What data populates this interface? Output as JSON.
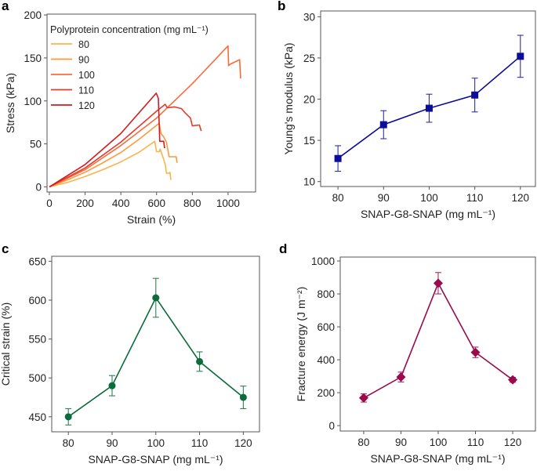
{
  "chart_data": [
    {
      "panel": "a",
      "type": "line",
      "xlabel": "Strain (%)",
      "ylabel": "Stress (kPa)",
      "xlim": [
        -13,
        1154
      ],
      "ylim": [
        -6,
        201
      ],
      "xticks": [
        0,
        200,
        400,
        600,
        800,
        1000
      ],
      "yticks": [
        0,
        50,
        100,
        150,
        200
      ],
      "grid": false,
      "legend": {
        "title": "Polyprotein concentration (mg mL⁻¹)",
        "placement": "top-left"
      },
      "series": [
        {
          "name": "80",
          "color": "#fdb24c",
          "points": [
            [
              0,
              0
            ],
            [
              100,
              5
            ],
            [
              200,
              12
            ],
            [
              300,
              20
            ],
            [
              400,
              29
            ],
            [
              500,
              40
            ],
            [
              590,
              53
            ],
            [
              600,
              41
            ],
            [
              615,
              41
            ],
            [
              620,
              44
            ],
            [
              635,
              35
            ],
            [
              650,
              25
            ],
            [
              655,
              16
            ],
            [
              670,
              16
            ],
            [
              675,
              17
            ],
            [
              680,
              8
            ]
          ]
        },
        {
          "name": "90",
          "color": "#fc993a",
          "points": [
            [
              0,
              0
            ],
            [
              100,
              8
            ],
            [
              200,
              17
            ],
            [
              300,
              28
            ],
            [
              400,
              40
            ],
            [
              500,
              55
            ],
            [
              615,
              74
            ],
            [
              625,
              62
            ],
            [
              640,
              58
            ],
            [
              655,
              52
            ],
            [
              670,
              35
            ],
            [
              710,
              35
            ],
            [
              715,
              28
            ]
          ]
        },
        {
          "name": "100",
          "color": "#fb6b3a",
          "points": [
            [
              0,
              0
            ],
            [
              200,
              20
            ],
            [
              400,
              48
            ],
            [
              600,
              80
            ],
            [
              800,
              120
            ],
            [
              1000,
              164
            ],
            [
              1003,
              141
            ],
            [
              1015,
              143
            ],
            [
              1065,
              148
            ],
            [
              1070,
              126
            ]
          ]
        },
        {
          "name": "110",
          "color": "#e8382b",
          "points": [
            [
              0,
              0
            ],
            [
              200,
              22
            ],
            [
              400,
              52
            ],
            [
              600,
              88
            ],
            [
              648,
              96
            ],
            [
              660,
              92
            ],
            [
              700,
              93
            ],
            [
              740,
              91
            ],
            [
              760,
              86
            ],
            [
              790,
              80
            ],
            [
              800,
              71
            ],
            [
              840,
              72
            ],
            [
              850,
              65
            ]
          ]
        },
        {
          "name": "120",
          "color": "#d31b1e",
          "points": [
            [
              0,
              0
            ],
            [
              200,
              26
            ],
            [
              400,
              62
            ],
            [
              598,
              109
            ],
            [
              610,
              103
            ],
            [
              618,
              53
            ],
            [
              640,
              53
            ],
            [
              645,
              45
            ]
          ]
        }
      ]
    },
    {
      "panel": "b",
      "type": "line",
      "xlabel": "SNAP-G8-SNAP (mg mL⁻¹)",
      "ylabel": "Young's modulus (kPa)",
      "xlim": [
        76.2,
        123.3
      ],
      "ylim": [
        9.4,
        30.7
      ],
      "xticks": [
        80,
        90,
        100,
        110,
        120
      ],
      "yticks": [
        10,
        15,
        20,
        25,
        30
      ],
      "grid": false,
      "marker": "square",
      "color": "#0d0d9c",
      "categories": [
        80,
        90,
        100,
        110,
        120
      ],
      "values": [
        12.8,
        16.9,
        18.9,
        20.5,
        25.2
      ],
      "errors": [
        1.55,
        1.7,
        1.7,
        2.05,
        2.55
      ]
    },
    {
      "panel": "c",
      "type": "line",
      "xlabel": "SNAP-G8-SNAP (mg mL⁻¹)",
      "ylabel": "Critical strain (%)",
      "xlim": [
        76.2,
        123.7
      ],
      "ylim": [
        430.7,
        656.4
      ],
      "xticks": [
        80,
        90,
        100,
        110,
        120
      ],
      "yticks": [
        450,
        500,
        550,
        600,
        650
      ],
      "grid": false,
      "marker": "circle",
      "color": "#0b6b3a",
      "categories": [
        80,
        90,
        100,
        110,
        120
      ],
      "values": [
        450,
        490,
        603,
        521,
        475
      ],
      "errors": [
        10.5,
        13,
        25,
        12.5,
        14.5
      ]
    },
    {
      "panel": "d",
      "type": "line",
      "xlabel": "SNAP-G8-SNAP (mg mL⁻¹)",
      "ylabel": "Fracture energy (J m⁻²)",
      "xlim": [
        73.7,
        126.1
      ],
      "ylim": [
        -33,
        1024
      ],
      "xticks": [
        80,
        90,
        100,
        110,
        120
      ],
      "yticks": [
        0,
        200,
        400,
        600,
        800,
        1000
      ],
      "grid": false,
      "marker": "diamond",
      "color": "#9b0a4a",
      "categories": [
        80,
        90,
        100,
        110,
        120
      ],
      "values": [
        168,
        295,
        865,
        445,
        278
      ],
      "errors": [
        25,
        30,
        65,
        32,
        15
      ]
    }
  ]
}
